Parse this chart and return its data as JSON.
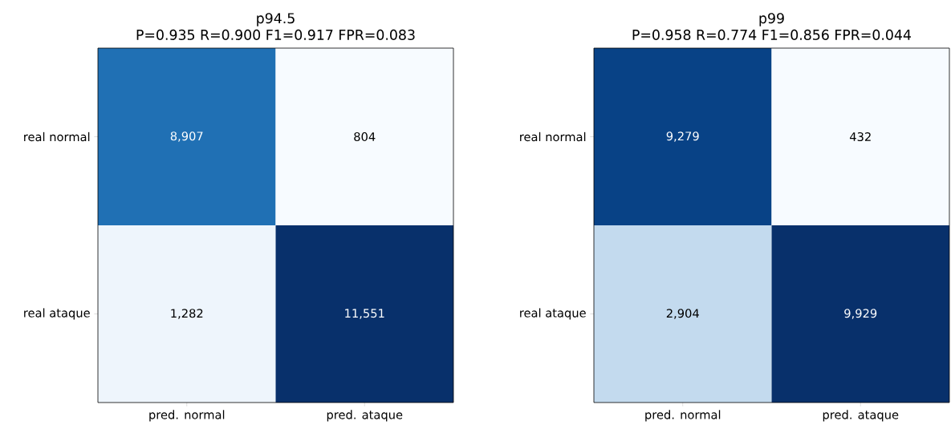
{
  "chart_data": [
    {
      "type": "heatmap",
      "title": "p94.5",
      "subtitle": "P=0.935  R=0.900  F1=0.917  FPR=0.083",
      "categories": [
        "pred. normal",
        "pred. ataque"
      ],
      "y_categories": [
        "real normal",
        "real ataque"
      ],
      "cells": [
        [
          8907,
          804
        ],
        [
          1282,
          11551
        ]
      ],
      "cell_labels": [
        [
          "8,907",
          "804"
        ],
        [
          "1,282",
          "11,551"
        ]
      ]
    },
    {
      "type": "heatmap",
      "title": "p99",
      "subtitle": "P=0.958  R=0.774  F1=0.856  FPR=0.044",
      "categories": [
        "pred. normal",
        "pred. ataque"
      ],
      "y_categories": [
        "real normal",
        "real ataque"
      ],
      "cells": [
        [
          9279,
          432
        ],
        [
          2904,
          9929
        ]
      ],
      "cell_labels": [
        [
          "9,279",
          "432"
        ],
        [
          "2,904",
          "9,929"
        ]
      ]
    }
  ]
}
